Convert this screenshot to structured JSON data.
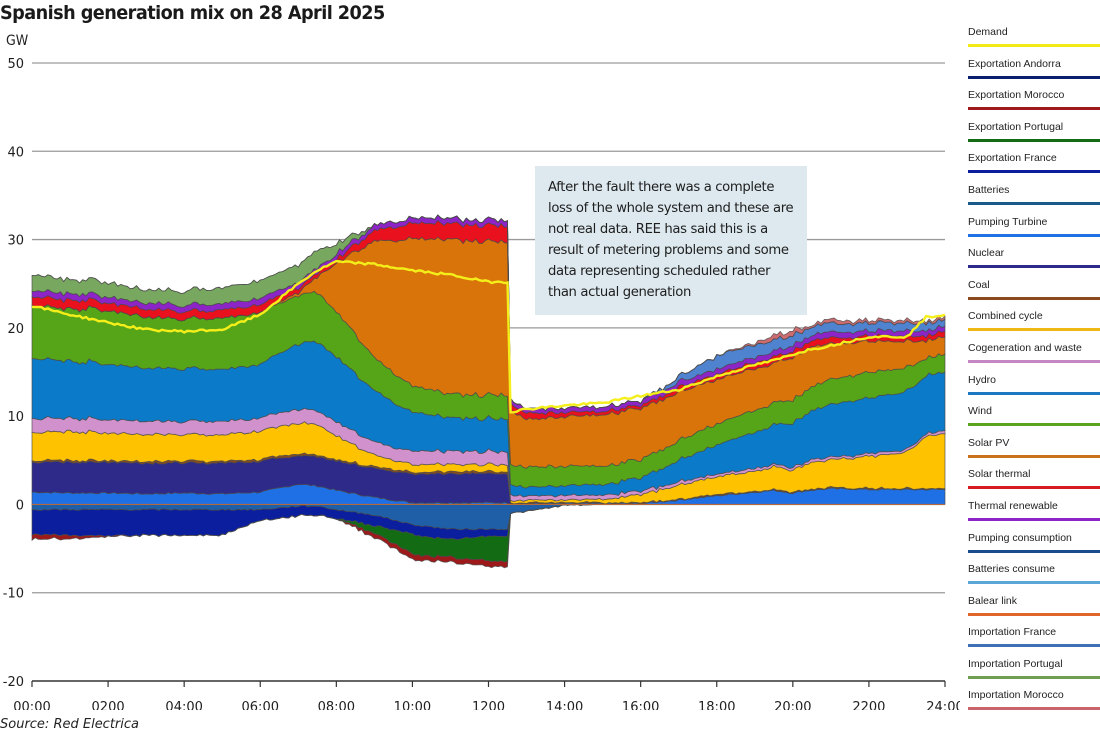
{
  "chart_data": {
    "type": "area",
    "title": "Spanish generation mix on 28 April 2025",
    "ylabel": "GW",
    "xlabel": "",
    "source": "Source: Red Electrica",
    "ylim": [
      -20,
      50
    ],
    "yticks": [
      50,
      40,
      30,
      20,
      10,
      0,
      -10,
      -20
    ],
    "ytick_labels": [
      "50",
      "40",
      "30",
      "20",
      "10",
      "0",
      "-10",
      "-20"
    ],
    "xlim_hours": [
      0,
      24
    ],
    "xtick_hours": [
      0,
      2,
      4,
      6,
      8,
      10,
      12,
      14,
      16,
      18,
      20,
      22,
      24
    ],
    "xtick_labels": [
      "00:00",
      "0200",
      "04:00",
      "06:00",
      "08:00",
      "10:00",
      "1200",
      "14:00",
      "16:00",
      "18:00",
      "20:00",
      "2200",
      "24:00"
    ],
    "grid": true,
    "legend_position": "right",
    "annotation": "After the fault there was a complete loss of the whole system and these are not real data. REE has said this is a result of metering problems and some data representing scheduled rather than actual generation",
    "x_hours": [
      0,
      1,
      2,
      3,
      4,
      5,
      6,
      7,
      7.5,
      8,
      9,
      10,
      11,
      12,
      12.5,
      12.58,
      13,
      14,
      15,
      16,
      17,
      18,
      19,
      19.5,
      20,
      20.4,
      21,
      22,
      23,
      23.5,
      24
    ],
    "demand": [
      22.5,
      21.5,
      20.6,
      19.8,
      19.6,
      19.8,
      21.5,
      25.0,
      26.5,
      27.5,
      27.2,
      26.5,
      26.0,
      25.2,
      25.2,
      10.5,
      10.8,
      11.2,
      11.5,
      12.3,
      13.0,
      14.5,
      15.8,
      16.3,
      17.0,
      17.5,
      18.0,
      19.0,
      19.0,
      21.2,
      21.5
    ],
    "positive_series": [
      {
        "name": "Pumping Turbine",
        "color": "#1f6fe5",
        "values": [
          1.4,
          1.3,
          1.3,
          1.2,
          1.3,
          1.2,
          1.4,
          2.3,
          2.1,
          1.6,
          0.8,
          0.2,
          0.2,
          0.2,
          0.2,
          0.1,
          0.1,
          0.1,
          0.1,
          0.1,
          0.5,
          1.0,
          1.4,
          1.6,
          1.3,
          1.6,
          1.8,
          1.7,
          1.7,
          1.7,
          1.7
        ]
      },
      {
        "name": "Nuclear",
        "color": "#2e2a8a",
        "values": [
          3.4,
          3.5,
          3.5,
          3.5,
          3.4,
          3.5,
          3.5,
          3.3,
          3.3,
          3.3,
          3.3,
          3.3,
          3.3,
          3.3,
          3.3,
          0.0,
          0.0,
          0.0,
          0.0,
          0.0,
          0.0,
          0.0,
          0.0,
          0.0,
          0.0,
          0.0,
          0.0,
          0.0,
          0.0,
          0.0,
          0.0
        ]
      },
      {
        "name": "Coal",
        "color": "#8b4a1c",
        "values": [
          0.2,
          0.2,
          0.2,
          0.2,
          0.2,
          0.2,
          0.2,
          0.2,
          0.2,
          0.2,
          0.2,
          0.2,
          0.2,
          0.2,
          0.2,
          0.1,
          0.1,
          0.1,
          0.1,
          0.1,
          0.1,
          0.1,
          0.1,
          0.1,
          0.1,
          0.1,
          0.1,
          0.1,
          0.1,
          0.1,
          0.1
        ]
      },
      {
        "name": "Combined cycle",
        "color": "#ffc200",
        "values": [
          3.2,
          3.3,
          3.1,
          3.1,
          3.0,
          3.0,
          3.2,
          3.5,
          3.4,
          2.7,
          1.3,
          0.9,
          0.8,
          0.8,
          0.8,
          0.2,
          0.3,
          0.3,
          0.4,
          0.9,
          1.6,
          2.0,
          2.3,
          2.6,
          2.5,
          3.0,
          3.2,
          3.6,
          4.1,
          6.0,
          6.2
        ]
      },
      {
        "name": "Cogeneration and waste",
        "color": "#d191cc",
        "values": [
          1.6,
          1.5,
          1.5,
          1.5,
          1.5,
          1.5,
          1.5,
          1.6,
          1.6,
          1.6,
          1.5,
          1.5,
          1.5,
          1.5,
          1.5,
          0.6,
          0.5,
          0.5,
          0.5,
          0.4,
          0.4,
          0.3,
          0.3,
          0.3,
          0.3,
          0.3,
          0.3,
          0.3,
          0.3,
          0.3,
          0.3
        ]
      },
      {
        "name": "Hydro",
        "color": "#0b7bc9",
        "values": [
          6.8,
          6.5,
          6.3,
          6.0,
          6.0,
          5.9,
          6.1,
          7.4,
          7.8,
          7.4,
          5.8,
          4.4,
          3.8,
          3.7,
          3.7,
          1.2,
          1.0,
          1.1,
          1.2,
          1.5,
          2.4,
          3.3,
          4.1,
          4.5,
          5.0,
          5.4,
          6.0,
          6.3,
          6.6,
          6.6,
          6.6
        ]
      },
      {
        "name": "Wind",
        "color": "#56a418",
        "values": [
          6.0,
          5.9,
          6.1,
          5.8,
          5.6,
          5.8,
          5.9,
          5.5,
          5.6,
          5.1,
          3.7,
          3.0,
          2.7,
          2.7,
          2.7,
          2.3,
          2.3,
          2.2,
          2.1,
          2.1,
          2.2,
          2.4,
          2.5,
          2.5,
          2.6,
          2.7,
          2.8,
          2.9,
          2.7,
          2.0,
          2.0
        ]
      },
      {
        "name": "Solar PV",
        "color": "#d9740a",
        "values": [
          0.0,
          0.0,
          0.0,
          0.0,
          0.0,
          0.0,
          0.0,
          0.3,
          1.8,
          5.5,
          13.2,
          16.7,
          17.5,
          17.4,
          17.3,
          6.2,
          5.4,
          5.6,
          5.8,
          5.8,
          5.5,
          5.0,
          4.7,
          4.5,
          4.8,
          4.7,
          4.0,
          3.5,
          3.0,
          2.0,
          2.0
        ]
      },
      {
        "name": "Solar thermal",
        "color": "#e8111d",
        "values": [
          1.0,
          1.0,
          0.9,
          0.9,
          0.9,
          0.9,
          0.9,
          0.5,
          0.4,
          0.4,
          1.2,
          1.8,
          1.8,
          1.8,
          1.8,
          0.7,
          0.7,
          0.5,
          0.4,
          0.3,
          0.5,
          0.6,
          0.7,
          0.7,
          0.7,
          0.7,
          0.7,
          0.6,
          0.6,
          0.6,
          0.6
        ]
      },
      {
        "name": "Thermal renewable",
        "color": "#8d24c8",
        "values": [
          0.7,
          0.7,
          0.7,
          0.7,
          0.7,
          0.7,
          0.7,
          0.6,
          0.6,
          0.6,
          0.6,
          0.6,
          0.6,
          0.6,
          0.6,
          0.5,
          0.5,
          0.5,
          0.5,
          0.5,
          0.6,
          0.6,
          0.6,
          0.6,
          0.6,
          0.6,
          0.6,
          0.6,
          0.6,
          0.6,
          0.6
        ]
      },
      {
        "name": "Importation France",
        "color": "#4f83cf",
        "values": [
          0.0,
          0.0,
          0.0,
          0.0,
          0.0,
          0.0,
          0.0,
          0.0,
          0.0,
          0.0,
          0.0,
          0.0,
          0.0,
          0.0,
          0.0,
          0.0,
          0.0,
          0.0,
          0.0,
          0.0,
          0.6,
          1.5,
          1.4,
          1.3,
          1.1,
          1.0,
          1.0,
          0.9,
          0.9,
          0.8,
          0.8
        ]
      },
      {
        "name": "Importation Portugal",
        "color": "#78a860",
        "values": [
          1.8,
          1.6,
          1.6,
          1.5,
          1.6,
          1.8,
          2.0,
          2.0,
          2.0,
          1.2,
          0.0,
          0.0,
          0.0,
          0.0,
          0.0,
          0.0,
          0.0,
          0.0,
          0.0,
          0.0,
          0.0,
          0.0,
          0.0,
          0.0,
          0.0,
          0.0,
          0.0,
          0.0,
          0.0,
          0.0,
          0.0
        ]
      },
      {
        "name": "Importation Morocco",
        "color": "#cc6b70",
        "values": [
          0.0,
          0.0,
          0.0,
          0.0,
          0.0,
          0.0,
          0.0,
          0.0,
          0.0,
          0.0,
          0.0,
          0.0,
          0.0,
          0.0,
          0.0,
          0.0,
          0.0,
          0.0,
          0.0,
          0.0,
          0.0,
          0.0,
          0.2,
          0.5,
          0.6,
          0.2,
          0.4,
          0.3,
          0.3,
          0.3,
          0.3
        ]
      }
    ],
    "negative_series": [
      {
        "name": "Pumping consumption",
        "color": "#1e5fa8",
        "values": [
          -0.6,
          -0.6,
          -0.6,
          -0.6,
          -0.6,
          -0.6,
          -0.6,
          -0.2,
          -0.2,
          -0.6,
          -1.2,
          -2.3,
          -2.8,
          -2.8,
          -2.8,
          -1.0,
          -0.8,
          -0.1,
          0.0,
          0.0,
          0.0,
          0.0,
          0.0,
          0.0,
          0.0,
          0.0,
          0.0,
          0.0,
          0.0,
          0.0,
          0.0
        ]
      },
      {
        "name": "Exportation France",
        "color": "#0b1f9e",
        "values": [
          -2.8,
          -2.9,
          -3.0,
          -2.9,
          -2.9,
          -2.9,
          -1.2,
          -1.1,
          -1.0,
          -1.0,
          -1.2,
          -1.1,
          -1.2,
          -0.8,
          -0.8,
          0.0,
          0.0,
          0.0,
          0.0,
          0.0,
          0.0,
          0.0,
          0.0,
          0.0,
          0.0,
          0.0,
          0.0,
          0.0,
          0.0,
          0.0,
          0.0
        ]
      },
      {
        "name": "Exportation Portugal",
        "color": "#136b14",
        "values": [
          0.0,
          0.0,
          0.0,
          0.0,
          0.0,
          0.0,
          0.0,
          0.0,
          0.0,
          0.0,
          -0.8,
          -2.2,
          -2.0,
          -2.8,
          -2.8,
          0.0,
          0.0,
          0.0,
          0.0,
          0.0,
          0.0,
          0.0,
          0.0,
          0.0,
          0.0,
          0.0,
          0.0,
          0.0,
          0.0,
          0.0,
          0.0
        ]
      },
      {
        "name": "Exportation Morocco",
        "color": "#9e1a1a",
        "values": [
          -0.5,
          -0.4,
          -0.1,
          0.0,
          0.0,
          0.0,
          0.0,
          0.0,
          0.0,
          0.0,
          -0.5,
          -0.6,
          -0.6,
          -0.6,
          -0.6,
          0.0,
          0.0,
          0.0,
          0.0,
          0.0,
          0.0,
          0.0,
          0.0,
          0.0,
          0.0,
          0.0,
          0.0,
          0.0,
          0.0,
          0.0,
          0.0
        ]
      }
    ],
    "legend": [
      {
        "name": "Demand",
        "color": "#f2ea14"
      },
      {
        "name": "Exportation Andorra",
        "color": "#0a1e6e"
      },
      {
        "name": "Exportation Morocco",
        "color": "#9e1a1a"
      },
      {
        "name": "Exportation Portugal",
        "color": "#136b14"
      },
      {
        "name": "Exportation France",
        "color": "#0b1f9e"
      },
      {
        "name": "Batteries",
        "color": "#1a5a8a"
      },
      {
        "name": "Pumping Turbine",
        "color": "#1f6fe5"
      },
      {
        "name": "Nuclear",
        "color": "#2e2a8a"
      },
      {
        "name": "Coal",
        "color": "#8b4a1c"
      },
      {
        "name": "Combined cycle",
        "color": "#f0b814"
      },
      {
        "name": "Cogeneration and waste",
        "color": "#c487c4"
      },
      {
        "name": "Hydro",
        "color": "#1d78c1"
      },
      {
        "name": "Wind",
        "color": "#5aa31e"
      },
      {
        "name": "Solar PV",
        "color": "#c9711c"
      },
      {
        "name": "Solar thermal",
        "color": "#d61a22"
      },
      {
        "name": "Thermal renewable",
        "color": "#8d24c8"
      },
      {
        "name": "Pumping consumption",
        "color": "#1a4b8c"
      },
      {
        "name": "Batteries consume",
        "color": "#5aa6d6"
      },
      {
        "name": "Balear link",
        "color": "#e0652a"
      },
      {
        "name": "Importation France",
        "color": "#3f6fb4"
      },
      {
        "name": "Importation Portugal",
        "color": "#6f9e52"
      },
      {
        "name": "Importation Morocco",
        "color": "#c8646a"
      }
    ]
  }
}
